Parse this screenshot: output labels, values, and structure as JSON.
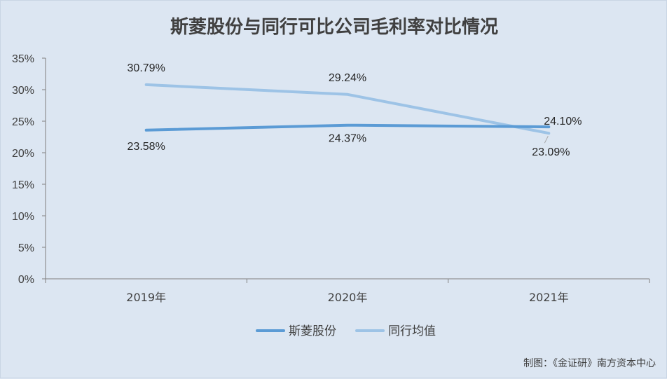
{
  "chart_data": {
    "type": "line",
    "title": "斯菱股份与同行可比公司毛利率对比情况",
    "categories": [
      "2019年",
      "2020年",
      "2021年"
    ],
    "ylim": [
      0,
      35
    ],
    "yticks": [
      "0%",
      "5%",
      "10%",
      "15%",
      "20%",
      "25%",
      "30%",
      "35%"
    ],
    "grid": false,
    "legend": "bottom",
    "series": [
      {
        "name": "斯菱股份",
        "values": [
          23.58,
          24.37,
          24.1
        ],
        "labels": [
          "23.58%",
          "24.37%",
          "24.10%"
        ],
        "color": "#5b9bd5"
      },
      {
        "name": "同行均值",
        "values": [
          30.79,
          29.24,
          23.09
        ],
        "labels": [
          "30.79%",
          "29.24%",
          "23.09%"
        ],
        "color": "#9dc3e6"
      }
    ]
  },
  "credit": "制图：《金证研》南方资本中心"
}
